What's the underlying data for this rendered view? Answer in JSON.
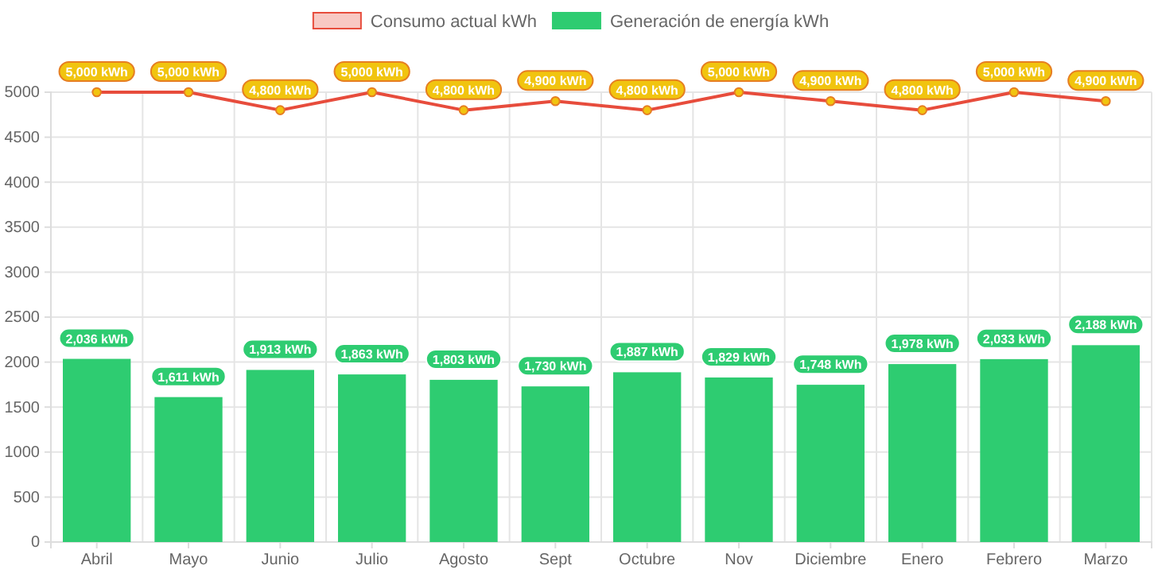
{
  "chart_data": {
    "type": "bar",
    "categories": [
      "Abril",
      "Mayo",
      "Junio",
      "Julio",
      "Agosto",
      "Sept",
      "Octubre",
      "Nov",
      "Diciembre",
      "Enero",
      "Febrero",
      "Marzo"
    ],
    "series": [
      {
        "name": "Consumo actual kWh",
        "type": "line",
        "color": "#e74c3c",
        "marker": "circle",
        "values": [
          5000,
          5000,
          4800,
          5000,
          4800,
          4900,
          4800,
          5000,
          4900,
          4800,
          5000,
          4900
        ],
        "value_labels": [
          "5,000 kWh",
          "5,000 kWh",
          "4,800 kWh",
          "5,000 kWh",
          "4,800 kWh",
          "4,900 kWh",
          "4,800 kWh",
          "5,000 kWh",
          "4,900 kWh",
          "4,800 kWh",
          "5,000 kWh",
          "4,900 kWh"
        ]
      },
      {
        "name": "Generación de energía kWh",
        "color": "#2ecc71",
        "values": [
          2036,
          1611,
          1913,
          1863,
          1803,
          1730,
          1887,
          1829,
          1748,
          1978,
          2033,
          2188
        ],
        "value_labels": [
          "2,036 kWh",
          "1,611 kWh",
          "1,913 kWh",
          "1,863 kWh",
          "1,803 kWh",
          "1,730 kWh",
          "1,887 kWh",
          "1,829 kWh",
          "1,748 kWh",
          "1,978 kWh",
          "2,033 kWh",
          "2,188 kWh"
        ]
      }
    ],
    "ylim": [
      0,
      5000
    ],
    "yticks": [
      0,
      500,
      1000,
      1500,
      2000,
      2500,
      3000,
      3500,
      4000,
      4500,
      5000
    ],
    "grid": true,
    "legend": "top"
  }
}
